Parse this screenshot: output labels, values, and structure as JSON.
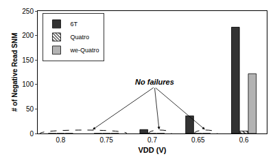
{
  "chart_data": {
    "type": "bar",
    "x_label": "VDD (V)",
    "y_label": "# of Negative Read SNM",
    "categories": [
      "0.8",
      "0.75",
      "0.7",
      "0.65",
      "0.6"
    ],
    "series": [
      {
        "name": "6T",
        "color": "#333333",
        "values": [
          0,
          0,
          8,
          36,
          217
        ]
      },
      {
        "name": "Quatro",
        "color": "#ffffff",
        "marker": "hatch",
        "values": [
          0,
          0,
          0,
          0,
          5
        ]
      },
      {
        "name": "we-Quatro",
        "color": "#b3b3b3",
        "values": [
          0,
          0,
          0,
          0,
          122
        ]
      }
    ],
    "ylim": [
      0,
      250
    ],
    "yticks": [
      0,
      50,
      100,
      150,
      200,
      250
    ],
    "grid": false,
    "legend": "upper left",
    "annotations": [
      "No failures"
    ]
  }
}
